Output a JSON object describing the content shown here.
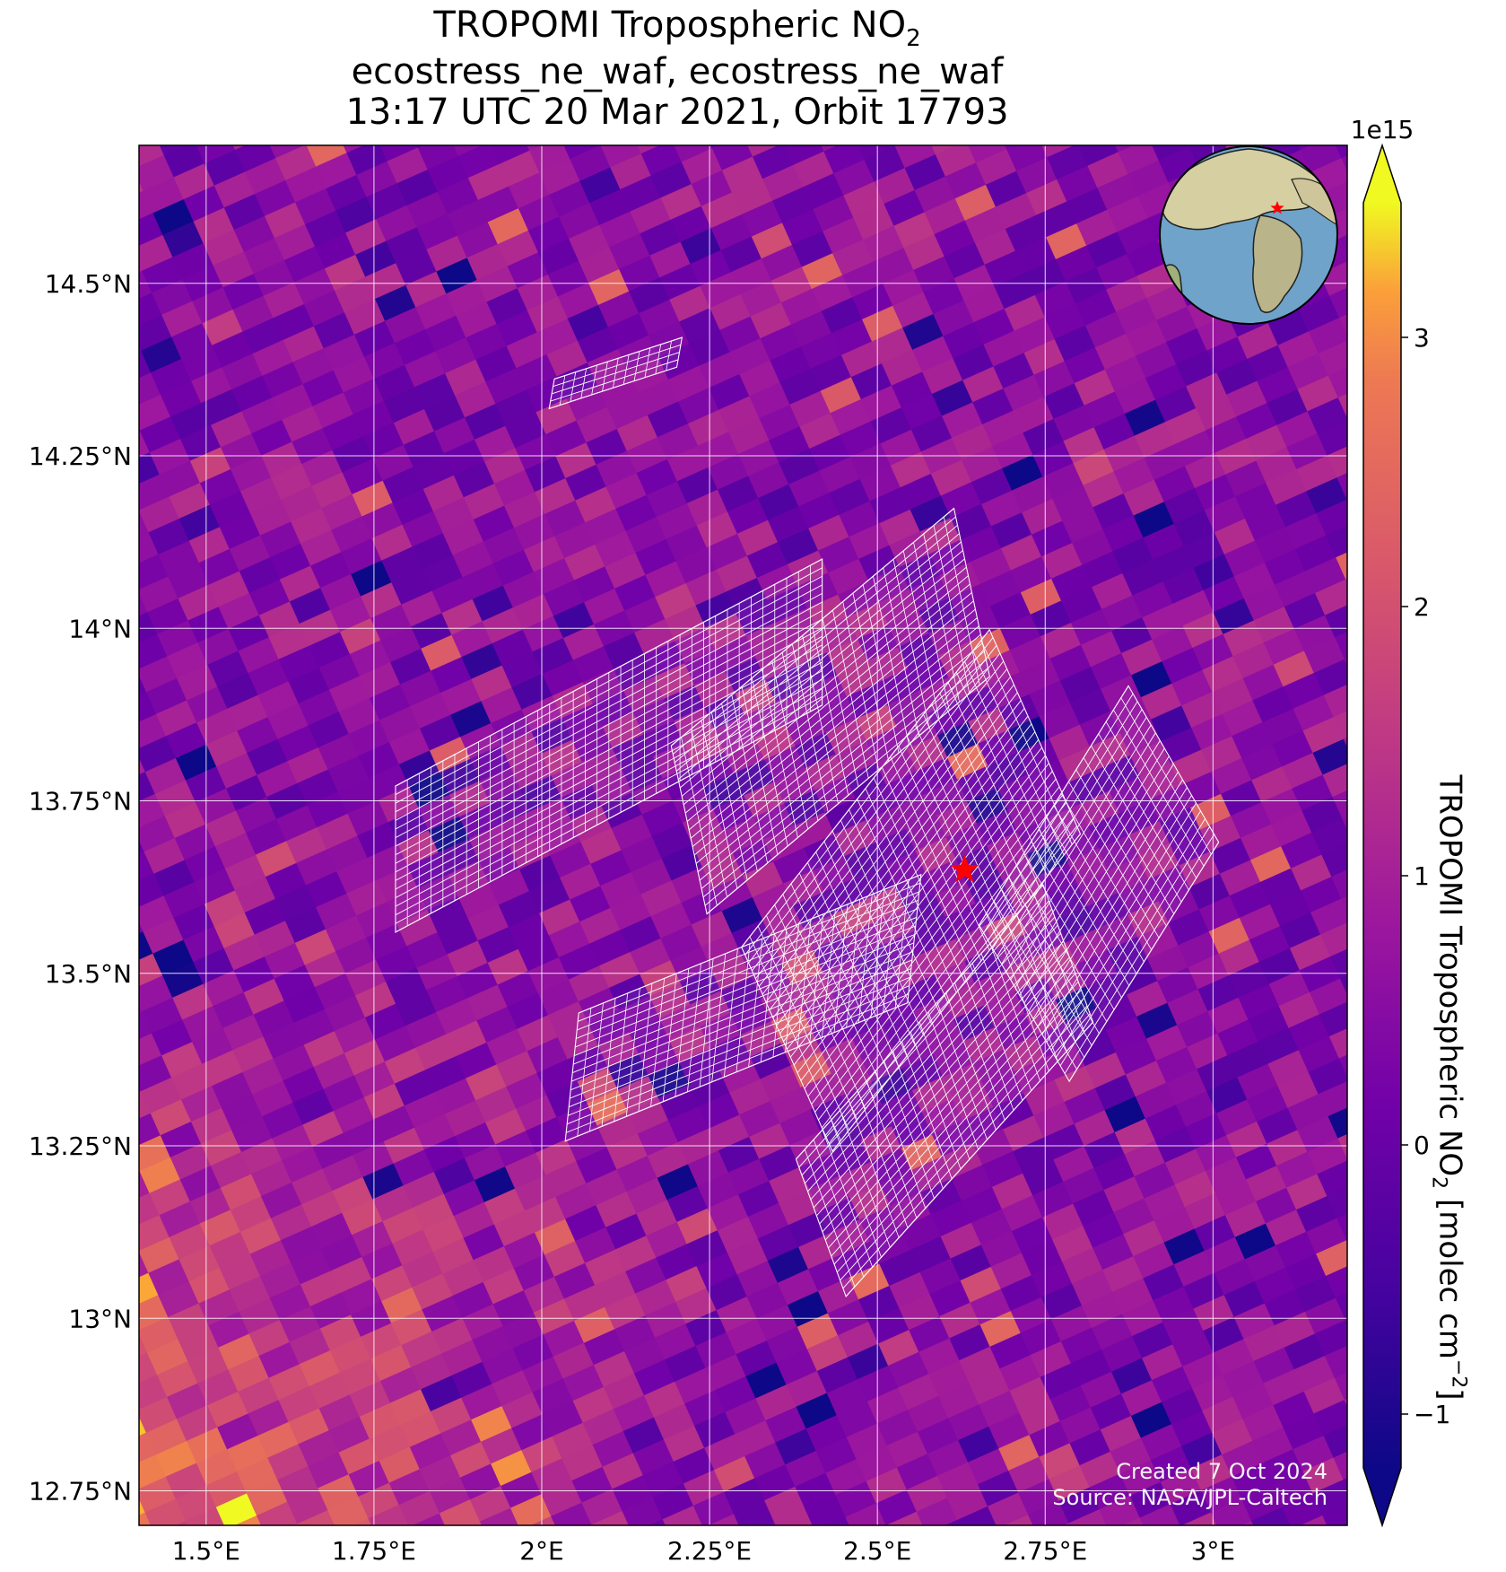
{
  "title": {
    "line1_prefix": "TROPOMI Tropospheric NO",
    "line1_sub": "2",
    "line2": "ecostress_ne_waf, ecostress_ne_waf",
    "line3": "13:17 UTC 20 Mar 2021, Orbit 17793"
  },
  "colorbar": {
    "label_prefix": "TROPOMI Tropospheric NO",
    "label_sub": "2",
    "label_mid": " [molec cm",
    "label_sup": "−2",
    "label_suffix": "]",
    "offset_text": "1e15",
    "ticks": [
      {
        "value": -1,
        "label": "−1"
      },
      {
        "value": 0,
        "label": "0"
      },
      {
        "value": 1,
        "label": "1"
      },
      {
        "value": 2,
        "label": "2"
      },
      {
        "value": 3,
        "label": "3"
      }
    ],
    "vmin": -1.2,
    "vmax": 3.5,
    "colormap": "plasma",
    "extend": "both"
  },
  "credits": {
    "created": "Created 7 Oct 2024",
    "source": "Source: NASA/JPL-Caltech"
  },
  "chart_data": {
    "type": "heatmap",
    "title": "TROPOMI Tropospheric NO2",
    "xlim": [
      1.4,
      3.2
    ],
    "ylim": [
      12.7,
      14.7
    ],
    "x_ticks": [
      {
        "value": 1.5,
        "label": "1.5°E"
      },
      {
        "value": 1.75,
        "label": "1.75°E"
      },
      {
        "value": 2.0,
        "label": "2°E"
      },
      {
        "value": 2.25,
        "label": "2.25°E"
      },
      {
        "value": 2.5,
        "label": "2.5°E"
      },
      {
        "value": 2.75,
        "label": "2.75°E"
      },
      {
        "value": 3.0,
        "label": "3°E"
      }
    ],
    "y_ticks": [
      {
        "value": 14.5,
        "label": "14.5°N"
      },
      {
        "value": 14.25,
        "label": "14.25°N"
      },
      {
        "value": 14.0,
        "label": "14°N"
      },
      {
        "value": 13.75,
        "label": "13.75°N"
      },
      {
        "value": 13.5,
        "label": "13.5°N"
      },
      {
        "value": 13.25,
        "label": "13.25°N"
      },
      {
        "value": 13.0,
        "label": "13°N"
      },
      {
        "value": 12.75,
        "label": "12.75°N"
      }
    ],
    "grid": true,
    "units": "molec cm-2 (x1e15)",
    "pixel_size_deg": [
      0.05,
      0.035
    ],
    "field_summary": {
      "background_typical": 0.6,
      "enhanced_region": "south-west corner, values 2-3.5",
      "min": -1.2,
      "max": 3.5
    },
    "site_marker": {
      "lon": 2.63,
      "lat": 13.65,
      "symbol": "star",
      "color": "#ff0000"
    },
    "inset_globe_marker": {
      "lon": 2.63,
      "lat": 13.65,
      "symbol": "star",
      "color": "#ff0000"
    },
    "ecostress_scenes": [
      {
        "center": [
          2.11,
          14.37
        ]
      },
      {
        "center": [
          2.1,
          13.83
        ]
      },
      {
        "center": [
          2.43,
          13.88
        ]
      },
      {
        "center": [
          2.55,
          13.62
        ]
      },
      {
        "center": [
          2.83,
          13.63
        ]
      },
      {
        "center": [
          2.3,
          13.45
        ]
      },
      {
        "center": [
          2.6,
          13.33
        ]
      }
    ]
  }
}
